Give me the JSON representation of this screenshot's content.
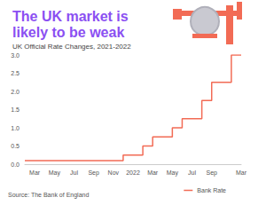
{
  "chart_data": {
    "type": "line",
    "title": "The UK market is likely to be weak",
    "subtitle": "UK Official Rate Changes, 2021-2022",
    "annotation": "Source: The Bank of England",
    "categories": [
      null,
      "Mar",
      null,
      "May",
      null,
      "Jul",
      null,
      "Sep",
      null,
      "Nov",
      null,
      "2022",
      null,
      "Mar",
      null,
      "May",
      null,
      "Jul",
      null,
      "Sep",
      null,
      null,
      "Mar"
    ],
    "series": [
      {
        "name": "Bank Rate",
        "color": "#f26b55",
        "line_style": "step",
        "values": [
          0.1,
          0.1,
          0.1,
          0.1,
          0.1,
          0.1,
          0.1,
          0.1,
          0.1,
          0.1,
          0.25,
          0.25,
          0.5,
          0.75,
          0.75,
          1.0,
          1.25,
          1.25,
          1.75,
          2.25,
          2.25,
          3.0,
          null
        ]
      }
    ],
    "ylim": [
      0,
      3
    ],
    "yticks": [
      {
        "value": 0,
        "label": "0.0"
      },
      {
        "value": 0.5,
        "label": "0.5"
      },
      {
        "value": 1,
        "label": "1.0"
      },
      {
        "value": 1.5,
        "label": "1.5"
      },
      {
        "value": 2,
        "label": "2.0"
      },
      {
        "value": 2.5,
        "label": "2.5"
      },
      {
        "value": 3,
        "label": "3.0"
      }
    ],
    "grid": false,
    "legend": "bottom"
  }
}
